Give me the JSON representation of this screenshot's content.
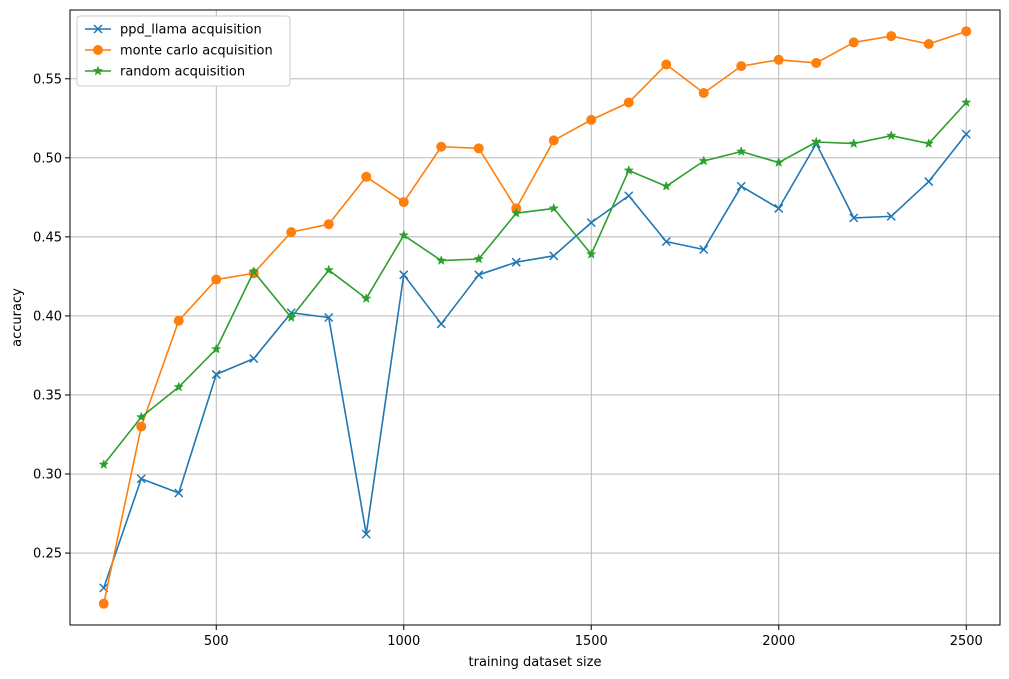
{
  "chart_data": {
    "type": "line",
    "title": "",
    "xlabel": "training dataset size",
    "ylabel": "accuracy",
    "xlim": [
      110,
      2590
    ],
    "ylim": [
      0.2045,
      0.5935
    ],
    "xticks": [
      500,
      1000,
      1500,
      2000,
      2500
    ],
    "yticks": [
      0.25,
      0.3,
      0.35,
      0.4,
      0.45,
      0.5,
      0.55
    ],
    "xtick_labels": [
      "500",
      "1000",
      "1500",
      "2000",
      "2500"
    ],
    "ytick_labels": [
      "0.25",
      "0.30",
      "0.35",
      "0.40",
      "0.45",
      "0.50",
      "0.55"
    ],
    "grid": true,
    "legend_position": "top-left",
    "x": [
      200,
      300,
      400,
      500,
      600,
      700,
      800,
      900,
      1000,
      1100,
      1200,
      1300,
      1400,
      1500,
      1600,
      1700,
      1800,
      1900,
      2000,
      2100,
      2200,
      2300,
      2400,
      2500
    ],
    "series": [
      {
        "name": "ppd_llama acquisition",
        "color": "#1f77b4",
        "marker": "x",
        "values": [
          0.228,
          0.297,
          0.288,
          0.363,
          0.373,
          0.402,
          0.399,
          0.262,
          0.426,
          0.395,
          0.426,
          0.434,
          0.438,
          0.459,
          0.476,
          0.447,
          0.442,
          0.482,
          0.468,
          0.509,
          0.462,
          0.463,
          0.485,
          0.515
        ]
      },
      {
        "name": "monte carlo acquisition",
        "color": "#ff7f0e",
        "marker": "circle",
        "values": [
          0.218,
          0.33,
          0.397,
          0.423,
          0.427,
          0.453,
          0.458,
          0.488,
          0.472,
          0.507,
          0.506,
          0.468,
          0.511,
          0.524,
          0.535,
          0.559,
          0.541,
          0.558,
          0.562,
          0.56,
          0.573,
          0.577,
          0.572,
          0.58
        ]
      },
      {
        "name": "random acquisition",
        "color": "#2ca02c",
        "marker": "star",
        "values": [
          0.306,
          0.336,
          0.355,
          0.379,
          0.428,
          0.399,
          0.429,
          0.411,
          0.451,
          0.435,
          0.436,
          0.465,
          0.468,
          0.439,
          0.492,
          0.482,
          0.498,
          0.504,
          0.497,
          0.51,
          0.509,
          0.514,
          0.509,
          0.535
        ]
      }
    ]
  }
}
